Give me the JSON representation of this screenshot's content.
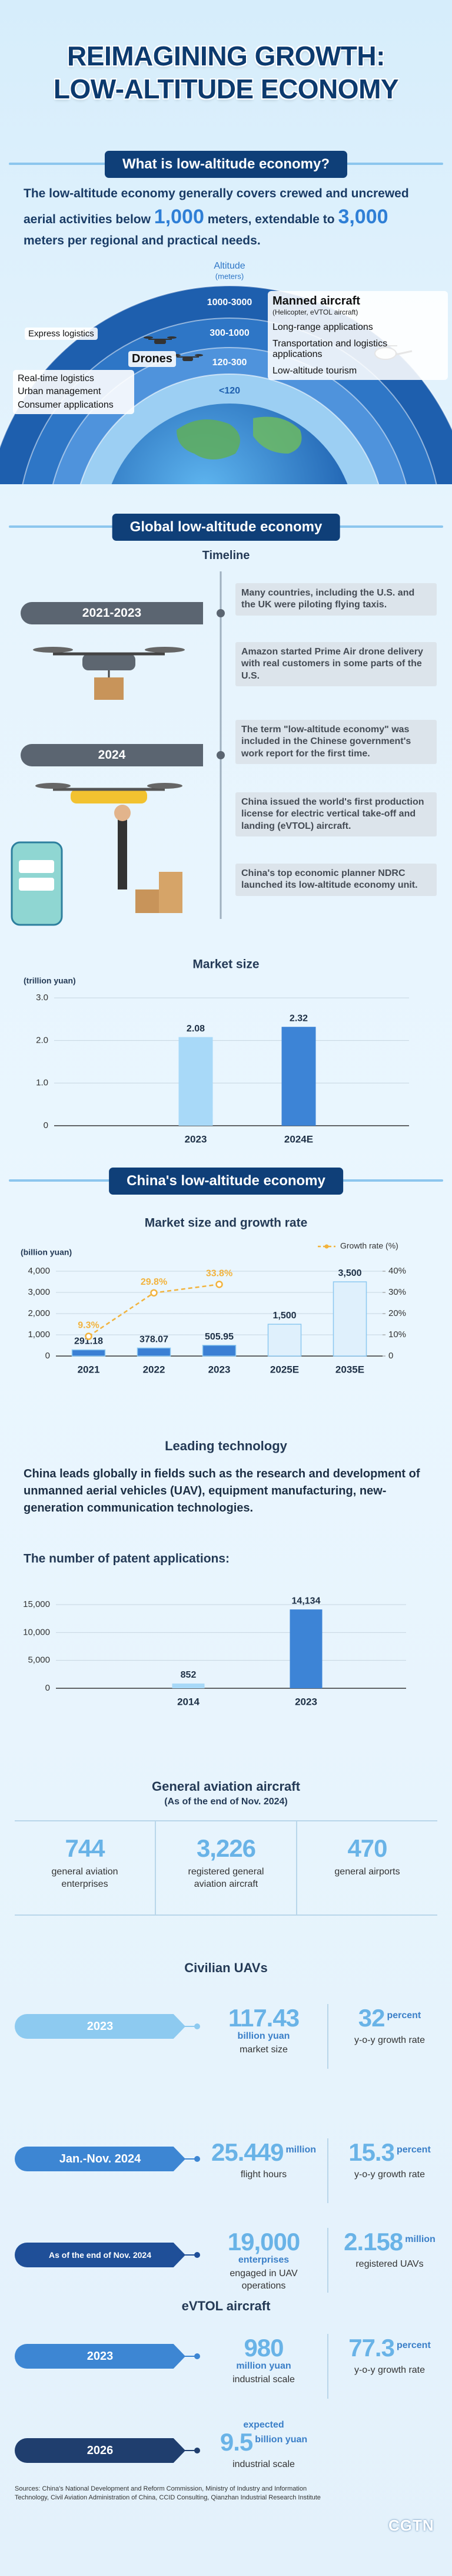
{
  "header": {
    "title": [
      "REIMAGINING GROWTH:",
      "LOW-ALTITUDE ECONOMY"
    ]
  },
  "intro": {
    "heading": "What is low-altitude economy?",
    "text": [
      "The low-altitude economy generally covers crewed and uncrewed aerial activities below ",
      "1,000",
      " meters, extendable to ",
      "3,000",
      " meters per regional and practical needs."
    ]
  },
  "diagram": {
    "axis_title": "Altitude",
    "axis_unit": "(meters)",
    "bands": [
      "1000-3000",
      "300-1000",
      "120-300",
      "<120"
    ],
    "manned": {
      "name": "Manned aircraft",
      "note": "(Helicopter, eVTOL aircraft)",
      "uses": [
        "Long-range applications",
        "Transportation and logistics applications",
        "Low-altitude tourism"
      ]
    },
    "drones": {
      "name": "Drones",
      "uses": [
        "Express logistics",
        "Real-time logistics",
        "Urban management",
        "Consumer applications"
      ]
    }
  },
  "global": {
    "heading": "Global low-altitude economy",
    "timeline": {
      "title": "Timeline",
      "periods": [
        {
          "label": "2021-2023",
          "events": [
            "Many countries, including the U.S. and the UK were piloting flying taxis.",
            "Amazon started Prime Air drone delivery with real customers in some parts of the U.S."
          ]
        },
        {
          "label": "2024",
          "events": [
            "The term \"low-altitude economy\" was included in the Chinese government's work report for the first time.",
            "China issued the world's first production license for electric vertical take-off and landing (eVTOL) aircraft.",
            "China's top economic planner NDRC launched its low-altitude economy unit."
          ]
        }
      ]
    }
  },
  "china": {
    "heading": "China's low-altitude economy",
    "technology": {
      "title": "Leading technology",
      "text": "China leads globally in fields such as the research and development of unmanned aerial vehicles (UAV), equipment manufacturing, new-generation communication technologies."
    }
  },
  "aviation": {
    "title": "General aviation aircraft",
    "note": "(As of the end of Nov. 2024)",
    "stats": [
      {
        "value": "744",
        "label": "general aviation enterprises"
      },
      {
        "value": "3,226",
        "label": "registered general aviation aircraft"
      },
      {
        "value": "470",
        "label": "general airports"
      }
    ]
  },
  "uavs": {
    "title": "Civilian UAVs",
    "rows": [
      {
        "period": "2023",
        "stats": [
          {
            "value": "117.43",
            "unit": "billion yuan",
            "label": "market size"
          },
          {
            "value": "32",
            "unit": "percent",
            "label": "y-o-y growth rate"
          }
        ]
      },
      {
        "period": "Jan.-Nov. 2024",
        "stats": [
          {
            "value": "25.449",
            "unit": "million",
            "label": "flight hours"
          },
          {
            "value": "15.3",
            "unit": "percent",
            "label": "y-o-y growth rate"
          }
        ]
      },
      {
        "period": "As of the end of Nov. 2024",
        "stats": [
          {
            "value": "19,000",
            "unit": "enterprises",
            "label": "engaged in UAV operations"
          },
          {
            "value": "2.158",
            "unit": "million",
            "label": "registered UAVs"
          }
        ]
      }
    ]
  },
  "evtol": {
    "title": "eVTOL aircraft",
    "rows": [
      {
        "period": "2023",
        "stats": [
          {
            "value": "980",
            "unit": "million yuan",
            "label": "industrial scale"
          },
          {
            "value": "77.3",
            "unit": "percent",
            "label": "y-o-y growth rate"
          }
        ]
      },
      {
        "period": "2026",
        "stats": [
          {
            "prefix": "expected",
            "value": "9.5",
            "unit": "billion yuan",
            "label": "industrial scale"
          }
        ]
      }
    ]
  },
  "footer": {
    "sources": "Sources: China's National Development and Reform Commission, Ministry of Industry and Information Technology, Civil Aviation Administration of China, CCID Consulting, Qianzhan Industrial Research Institute",
    "logo": "CGTN"
  },
  "chart_data": [
    {
      "type": "bar",
      "title": "Market size",
      "y_label": "(trillion yuan)",
      "categories": [
        "2023",
        "2024E"
      ],
      "values": [
        2.08,
        2.32
      ],
      "colors": [
        "#a8d9f8",
        "#3d84d6"
      ],
      "ylim": [
        0,
        3
      ],
      "yticks": [
        0,
        {
          "value": 1,
          "label": "1.0"
        },
        {
          "value": 2,
          "label": "2.0"
        },
        {
          "value": 3,
          "label": "3.0"
        }
      ],
      "grid": true
    },
    {
      "type": "bar",
      "title": "Market size and growth rate",
      "y_label": "(billion yuan)",
      "categories": [
        "2021",
        "2022",
        "2023",
        "2025E",
        "2035E"
      ],
      "series": [
        {
          "values": [
            291.18,
            378.07,
            505.95,
            1500,
            3500
          ],
          "value_labels": [
            "291.18",
            "378.07",
            "505.95",
            "1,500",
            "3,500"
          ],
          "colors": [
            "#3a7fd4",
            "#3a7fd4",
            "#3a7fd4",
            "#dff0fc",
            "#dff0fc"
          ]
        },
        {
          "name": "Growth rate (%)",
          "type": "line",
          "axis": "y2",
          "color": "#f2b33d",
          "values": [
            9.3,
            29.8,
            33.8,
            null,
            null
          ],
          "value_labels": [
            "9.3%",
            "29.8%",
            "33.8%",
            null,
            null
          ]
        }
      ],
      "ylim": [
        0,
        4000
      ],
      "yticks": [
        0,
        {
          "value": 1000,
          "label": "1,000"
        },
        {
          "value": 2000,
          "label": "2,000"
        },
        {
          "value": 3000,
          "label": "3,000"
        },
        {
          "value": 4000,
          "label": "4,000"
        }
      ],
      "y2lim": [
        0,
        40
      ],
      "y2ticks": [
        0,
        {
          "value": 10,
          "label": "10%"
        },
        {
          "value": 20,
          "label": "20%"
        },
        {
          "value": 30,
          "label": "30%"
        },
        {
          "value": 40,
          "label": "40%"
        }
      ],
      "grid": true,
      "legend": "top-right"
    },
    {
      "type": "bar",
      "title": "The number of patent applications:",
      "categories": [
        "2014",
        "2023"
      ],
      "values": [
        852,
        14134
      ],
      "value_labels": [
        "852",
        "14,134"
      ],
      "colors": [
        "#a8d9f8",
        "#3d84d6"
      ],
      "ylim": [
        0,
        15000
      ],
      "yticks": [
        0,
        {
          "value": 5000,
          "label": "5,000"
        },
        {
          "value": 10000,
          "label": "10,000"
        },
        {
          "value": 15000,
          "label": "15,000"
        }
      ],
      "grid": true
    }
  ]
}
